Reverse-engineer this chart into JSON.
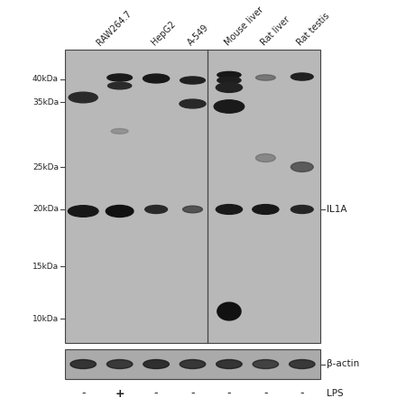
{
  "bg_color": "#ffffff",
  "blot_bg": "#b8b8b8",
  "actin_bg": "#aaaaaa",
  "band_dark": "#1a1a1a",
  "band_med": "#333333",
  "band_light": "#666666",
  "label_color": "#222222",
  "tick_color": "#444444",
  "border_color": "#444444",
  "lane_labels": [
    "RAW264.7",
    "HepG2",
    "A-549",
    "Mouse liver",
    "Rat liver",
    "Rat testis"
  ],
  "lps_labels": [
    "-",
    "+",
    "-",
    "-",
    "-",
    "-",
    "-"
  ],
  "mw_labels": [
    "40kDa",
    "35kDa",
    "25kDa",
    "20kDa",
    "15kDa",
    "10kDa"
  ],
  "il1a_label": "IL1A",
  "actin_label": "β-actin",
  "lps_text": "LPS",
  "figsize": [
    4.4,
    4.41
  ],
  "dpi": 100
}
